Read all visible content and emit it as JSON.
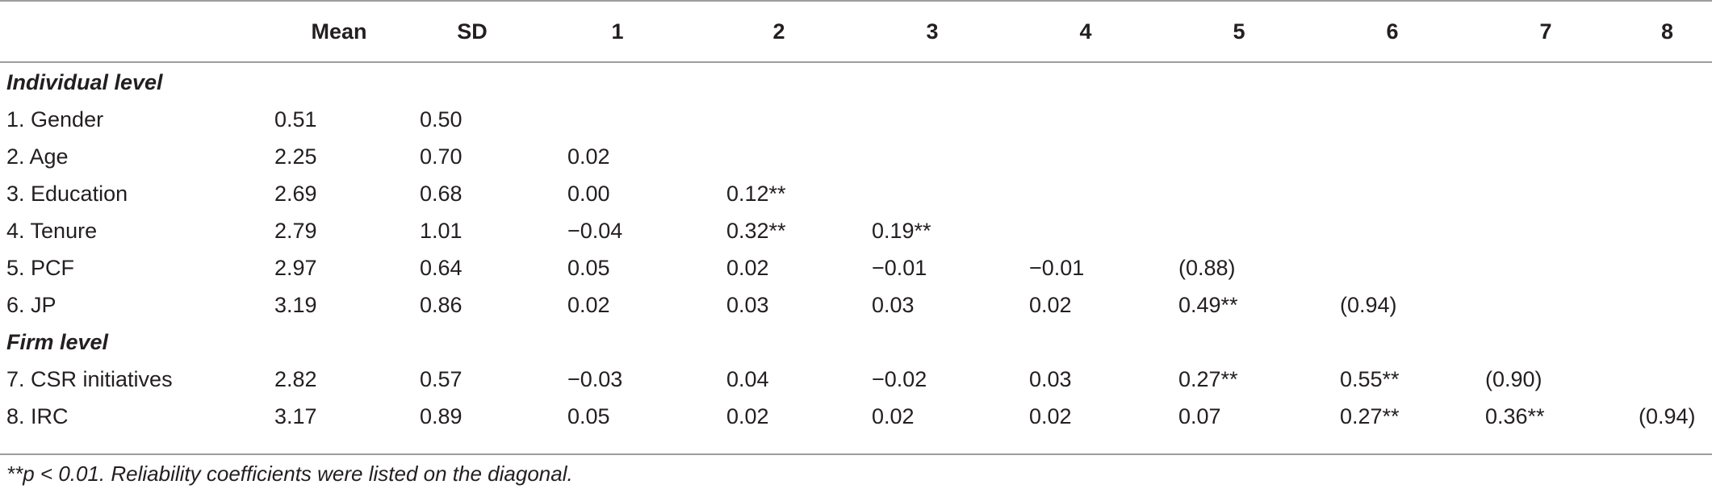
{
  "columns": [
    "Mean",
    "SD",
    "1",
    "2",
    "3",
    "4",
    "5",
    "6",
    "7",
    "8"
  ],
  "sections": [
    {
      "label": "Individual level",
      "rows": [
        {
          "label": "1. Gender",
          "cells": [
            "0.51",
            "0.50",
            "",
            "",
            "",
            "",
            "",
            "",
            "",
            ""
          ]
        },
        {
          "label": "2. Age",
          "cells": [
            "2.25",
            "0.70",
            "0.02",
            "",
            "",
            "",
            "",
            "",
            "",
            ""
          ]
        },
        {
          "label": "3. Education",
          "cells": [
            "2.69",
            "0.68",
            "0.00",
            "0.12**",
            "",
            "",
            "",
            "",
            "",
            ""
          ]
        },
        {
          "label": "4. Tenure",
          "cells": [
            "2.79",
            "1.01",
            "−0.04",
            "0.32**",
            "0.19**",
            "",
            "",
            "",
            "",
            ""
          ]
        },
        {
          "label": "5. PCF",
          "cells": [
            "2.97",
            "0.64",
            "0.05",
            "0.02",
            "−0.01",
            "−0.01",
            "(0.88)",
            "",
            "",
            ""
          ]
        },
        {
          "label": "6. JP",
          "cells": [
            "3.19",
            "0.86",
            "0.02",
            "0.03",
            "0.03",
            "0.02",
            "0.49**",
            "(0.94)",
            "",
            ""
          ]
        }
      ]
    },
    {
      "label": "Firm level",
      "rows": [
        {
          "label": "7. CSR initiatives",
          "cells": [
            "2.82",
            "0.57",
            "−0.03",
            "0.04",
            "−0.02",
            "0.03",
            "0.27**",
            "0.55**",
            "(0.90)",
            ""
          ]
        },
        {
          "label": "8. IRC",
          "cells": [
            "3.17",
            "0.89",
            "0.05",
            "0.02",
            "0.02",
            "0.02",
            "0.07",
            "0.27**",
            "0.36**",
            "(0.94)"
          ]
        }
      ]
    }
  ],
  "footnote": "**p < 0.01. Reliability coefficients were listed on the diagonal."
}
